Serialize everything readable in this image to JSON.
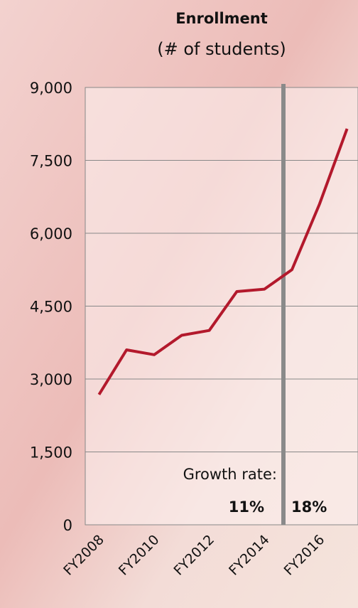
{
  "chart_data": {
    "type": "line",
    "title": "Enrollment",
    "subtitle": "(# of students)",
    "categories": [
      "FY2008",
      null,
      "FY2010",
      null,
      "FY2012",
      null,
      "FY2014",
      null,
      "FY2016",
      null
    ],
    "series": [
      {
        "name": "Enrollment",
        "color": "#b3192c",
        "values": [
          2680,
          3600,
          3500,
          3900,
          4000,
          4800,
          4850,
          5250,
          6600,
          8150
        ]
      }
    ],
    "ylim": [
      0,
      9000
    ],
    "yticks": [
      0,
      {
        "value": 1500,
        "label": "1,500"
      },
      {
        "value": 3000,
        "label": "3,000"
      },
      {
        "value": 4500,
        "label": "4,500"
      },
      {
        "value": 6000,
        "label": "6,000"
      },
      {
        "value": 7500,
        "label": "7,500"
      },
      {
        "value": 9000,
        "label": "9,000"
      }
    ],
    "grid": true,
    "annotations": {
      "label": "Growth rate:",
      "before": "11%",
      "after": "18%"
    }
  }
}
